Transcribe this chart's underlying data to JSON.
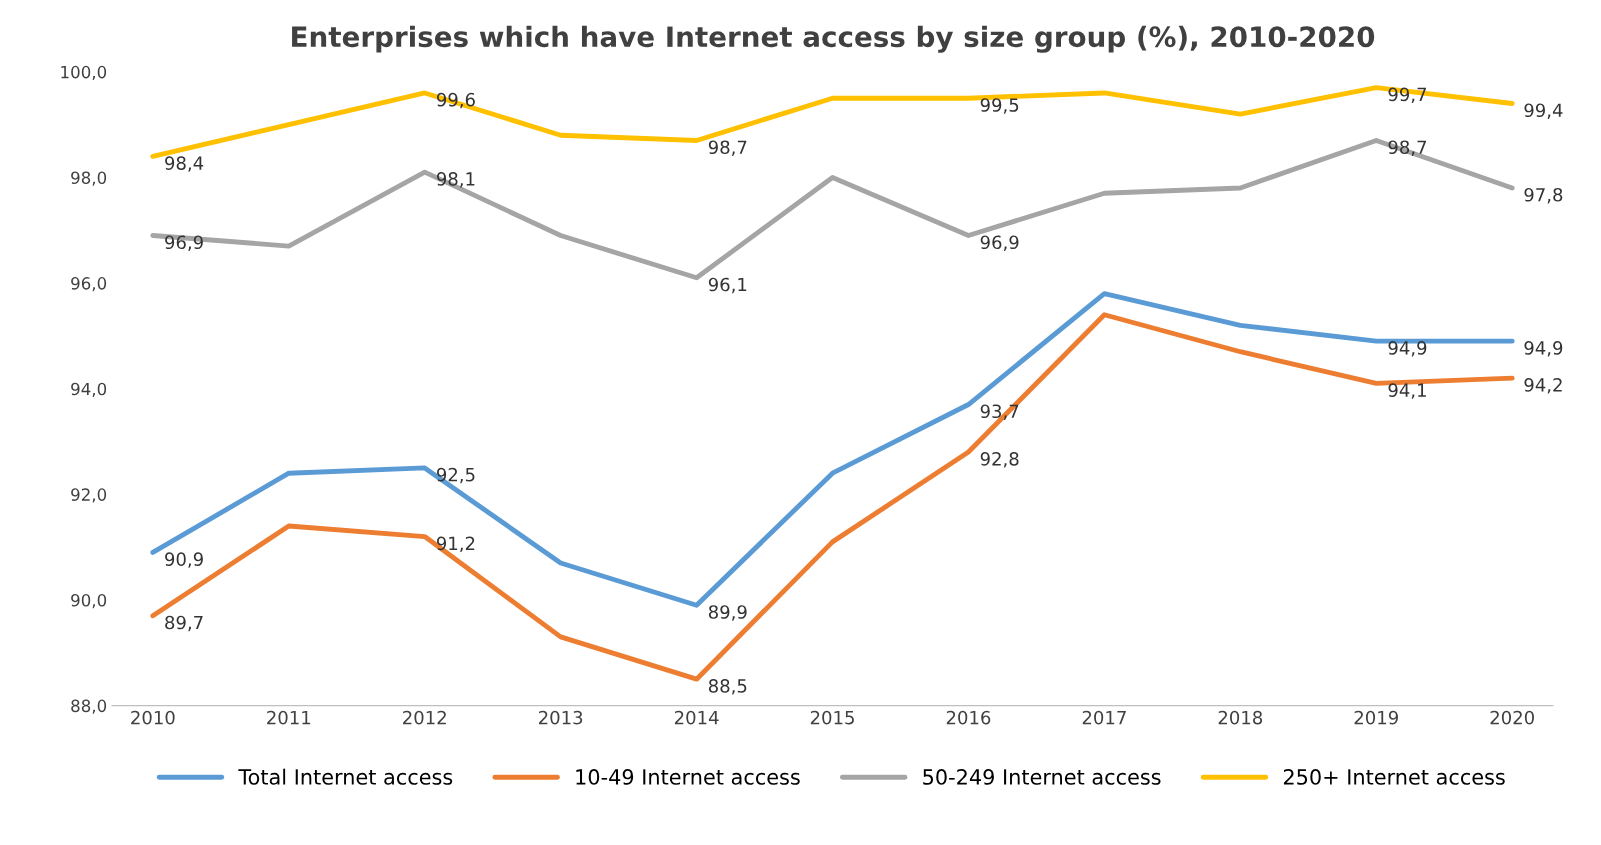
{
  "chart_data": {
    "type": "line",
    "title": "Enterprises which have Internet access by size group (%), 2010-2020",
    "categories": [
      "2010",
      "2011",
      "2012",
      "2013",
      "2014",
      "2015",
      "2016",
      "2017",
      "2018",
      "2019",
      "2020"
    ],
    "series": [
      {
        "name": "Total Internet access",
        "color": "#5b9bd5",
        "values": [
          90.9,
          92.4,
          92.5,
          90.7,
          89.9,
          92.4,
          93.7,
          95.8,
          95.2,
          94.9,
          94.9
        ],
        "value_labels": [
          "90,9",
          null,
          "92,5",
          null,
          "89,9",
          null,
          "93,7",
          null,
          null,
          "94,9",
          "94,9"
        ]
      },
      {
        "name": "10-49 Internet access",
        "color": "#ed7d31",
        "values": [
          89.7,
          91.4,
          91.2,
          89.3,
          88.5,
          91.1,
          92.8,
          95.4,
          94.7,
          94.1,
          94.2
        ],
        "value_labels": [
          "89,7",
          null,
          "91,2",
          null,
          "88,5",
          null,
          "92,8",
          null,
          null,
          "94,1",
          "94,2"
        ]
      },
      {
        "name": "50-249 Internet access",
        "color": "#a5a5a5",
        "values": [
          96.9,
          96.7,
          98.1,
          96.9,
          96.1,
          98.0,
          96.9,
          97.7,
          97.8,
          98.7,
          97.8
        ],
        "value_labels": [
          "96,9",
          null,
          "98,1",
          null,
          "96,1",
          null,
          "96,9",
          null,
          null,
          "98,7",
          "97,8"
        ]
      },
      {
        "name": "250+ Internet access",
        "color": "#ffc000",
        "values": [
          98.4,
          99.0,
          99.6,
          98.8,
          98.7,
          99.5,
          99.5,
          99.6,
          99.2,
          99.7,
          99.4
        ],
        "value_labels": [
          "98,4",
          null,
          "99,6",
          null,
          "98,7",
          null,
          "99,5",
          null,
          null,
          "99,7",
          "99,4"
        ]
      }
    ],
    "ylim": [
      88,
      100
    ],
    "yticks": [
      {
        "value": 88,
        "label": "88,0"
      },
      {
        "value": 90,
        "label": "90,0"
      },
      {
        "value": 92,
        "label": "92,0"
      },
      {
        "value": 94,
        "label": "94,0"
      },
      {
        "value": 96,
        "label": "96,0"
      },
      {
        "value": 98,
        "label": "98,0"
      },
      {
        "value": 100,
        "label": "100,0"
      }
    ],
    "grid": false,
    "legend": "bottom",
    "marker": "none",
    "line_style": "solid"
  }
}
